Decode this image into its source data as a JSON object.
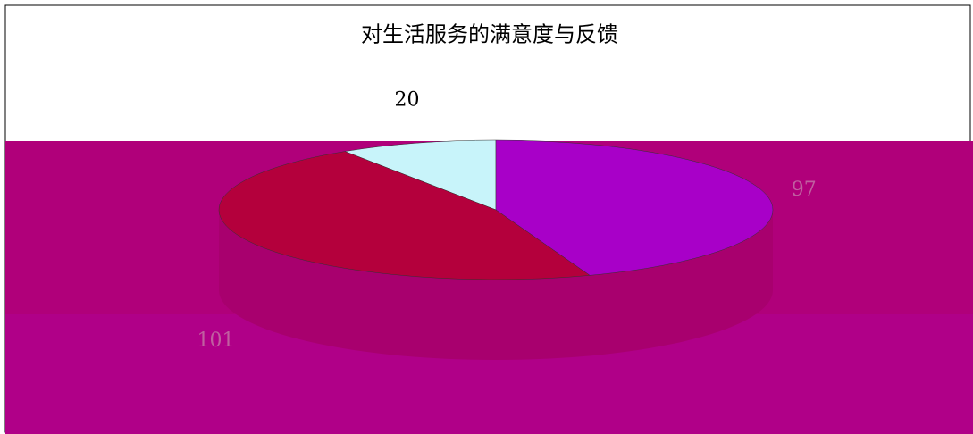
{
  "chart_data": {
    "type": "pie",
    "title": "对生活服务的满意度与反馈",
    "values": [
      20,
      97,
      101
    ],
    "colors": [
      "#c8f4fa",
      "#a800c8",
      "#b4003c"
    ]
  }
}
